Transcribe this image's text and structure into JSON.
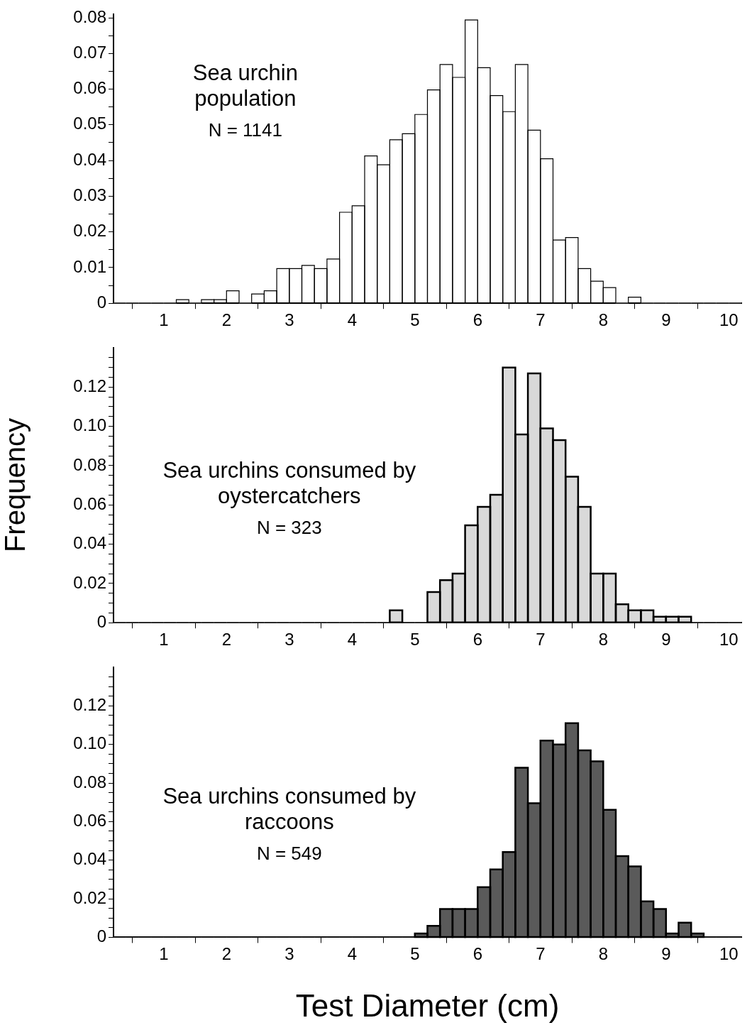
{
  "chart_data": [
    {
      "type": "histogram",
      "annotations": [
        "Sea urchin population",
        "N = 1141"
      ],
      "bins": [
        0.2,
        0.4,
        0.6,
        0.8,
        1.0,
        1.2,
        1.4,
        1.6,
        1.8,
        2.0,
        2.2,
        2.4,
        2.6,
        2.8,
        3.0,
        3.2,
        3.4,
        3.6,
        3.8,
        4.0,
        4.2,
        4.4,
        4.6,
        4.8,
        5.0,
        5.2,
        5.4,
        5.6,
        5.8,
        6.0,
        6.2,
        6.4,
        6.6,
        6.8,
        7.0,
        7.2,
        7.4,
        7.6,
        7.8,
        8.0,
        8.2,
        8.4,
        8.6,
        8.8,
        9.0,
        9.2,
        9.4,
        9.6,
        9.8,
        10.0,
        10.2
      ],
      "values": [
        0,
        0,
        0,
        0,
        0,
        0.001,
        0,
        0.001,
        0.001,
        0.0035,
        0,
        0.0026,
        0.0035,
        0.0097,
        0.0097,
        0.0106,
        0.0097,
        0.0124,
        0.0255,
        0.0273,
        0.0413,
        0.0388,
        0.0458,
        0.0475,
        0.0529,
        0.0598,
        0.0669,
        0.0633,
        0.0794,
        0.066,
        0.0582,
        0.0537,
        0.0669,
        0.0485,
        0.0405,
        0.0177,
        0.0184,
        0.0097,
        0.0062,
        0.0044,
        0,
        0.0017,
        0,
        0,
        0,
        0,
        0,
        0,
        0,
        0
      ],
      "color": "#ffffff",
      "xlim": [
        0.2,
        10.2
      ],
      "xticks": [
        1,
        2,
        3,
        4,
        5,
        6,
        7,
        8,
        9,
        10
      ],
      "ylim": [
        0,
        0.081
      ],
      "yticks": [
        0,
        {
          "value": 0.005,
          "label": null
        },
        0.01,
        {
          "value": 0.015,
          "label": null
        },
        0.02,
        {
          "value": 0.025,
          "label": null
        },
        0.03,
        {
          "value": 0.035,
          "label": null
        },
        0.04,
        {
          "value": 0.045,
          "label": null
        },
        0.05,
        {
          "value": 0.055,
          "label": null
        },
        0.06,
        {
          "value": 0.065,
          "label": null
        },
        0.07,
        {
          "value": 0.075,
          "label": null
        },
        0.08
      ]
    },
    {
      "type": "histogram",
      "ylabel": "Frequency",
      "annotations": [
        "Sea urchins consumed by oystercatchers",
        "N = 323"
      ],
      "bins": [
        0.2,
        0.4,
        0.6,
        0.8,
        1.0,
        1.2,
        1.4,
        1.6,
        1.8,
        2.0,
        2.2,
        2.4,
        2.6,
        2.8,
        3.0,
        3.2,
        3.4,
        3.6,
        3.8,
        4.0,
        4.2,
        4.4,
        4.6,
        4.8,
        5.0,
        5.2,
        5.4,
        5.6,
        5.8,
        6.0,
        6.2,
        6.4,
        6.6,
        6.8,
        7.0,
        7.2,
        7.4,
        7.6,
        7.8,
        8.0,
        8.2,
        8.4,
        8.6,
        8.8,
        9.0,
        9.2,
        9.4,
        9.6,
        9.8,
        10.0,
        10.2
      ],
      "values": [
        0,
        0,
        0,
        0,
        0,
        0,
        0,
        0,
        0,
        0,
        0,
        0,
        0,
        0,
        0,
        0,
        0,
        0,
        0,
        0,
        0,
        0,
        0.0063,
        0,
        0,
        0.0156,
        0.0217,
        0.025,
        0.0496,
        0.059,
        0.0652,
        0.13,
        0.0959,
        0.127,
        0.099,
        0.093,
        0.0744,
        0.059,
        0.025,
        0.025,
        0.0094,
        0.0063,
        0.0063,
        0.0031,
        0.0031,
        0.0031,
        0,
        0,
        0,
        0
      ],
      "color": "#d9d9d9",
      "xlim": [
        0.2,
        10.2
      ],
      "xticks": [
        1,
        2,
        3,
        4,
        5,
        6,
        7,
        8,
        9,
        10
      ],
      "ylim": [
        0,
        0.14
      ],
      "yticks": [
        0,
        {
          "value": 0.005,
          "label": null
        },
        {
          "value": 0.01,
          "label": null
        },
        {
          "value": 0.015,
          "label": null
        },
        0.02,
        {
          "value": 0.025,
          "label": null
        },
        {
          "value": 0.03,
          "label": null
        },
        {
          "value": 0.035,
          "label": null
        },
        0.04,
        {
          "value": 0.045,
          "label": null
        },
        {
          "value": 0.05,
          "label": null
        },
        {
          "value": 0.055,
          "label": null
        },
        0.06,
        {
          "value": 0.065,
          "label": null
        },
        {
          "value": 0.07,
          "label": null
        },
        {
          "value": 0.075,
          "label": null
        },
        0.08,
        {
          "value": 0.085,
          "label": null
        },
        {
          "value": 0.09,
          "label": null
        },
        {
          "value": 0.095,
          "label": null
        },
        {
          "value": 0.1,
          "label": "0.10"
        },
        {
          "value": 0.105,
          "label": null
        },
        {
          "value": 0.11,
          "label": null
        },
        {
          "value": 0.115,
          "label": null
        },
        0.12,
        {
          "value": 0.125,
          "label": null
        },
        {
          "value": 0.13,
          "label": null
        },
        {
          "value": 0.135,
          "label": null
        }
      ]
    },
    {
      "type": "histogram",
      "xlabel": "Test Diameter (cm)",
      "annotations": [
        "Sea urchins consumed by raccoons",
        "N = 549"
      ],
      "bins": [
        0.2,
        0.4,
        0.6,
        0.8,
        1.0,
        1.2,
        1.4,
        1.6,
        1.8,
        2.0,
        2.2,
        2.4,
        2.6,
        2.8,
        3.0,
        3.2,
        3.4,
        3.6,
        3.8,
        4.0,
        4.2,
        4.4,
        4.6,
        4.8,
        5.0,
        5.2,
        5.4,
        5.6,
        5.8,
        6.0,
        6.2,
        6.4,
        6.6,
        6.8,
        7.0,
        7.2,
        7.4,
        7.6,
        7.8,
        8.0,
        8.2,
        8.4,
        8.6,
        8.8,
        9.0,
        9.2,
        9.4,
        9.6,
        9.8,
        10.0,
        10.2
      ],
      "values": [
        0,
        0,
        0,
        0,
        0,
        0,
        0,
        0,
        0,
        0,
        0,
        0,
        0,
        0,
        0,
        0,
        0,
        0,
        0,
        0,
        0,
        0,
        0,
        0,
        0.002,
        0.0059,
        0.0147,
        0.0147,
        0.0147,
        0.026,
        0.0352,
        0.0442,
        0.0879,
        0.0695,
        0.102,
        0.1,
        0.111,
        0.0969,
        0.0912,
        0.0661,
        0.0421,
        0.0368,
        0.0186,
        0.0147,
        0.002,
        0.0076,
        0.002,
        0,
        0,
        0
      ],
      "color": "#5a5a5a",
      "xlim": [
        0.2,
        10.2
      ],
      "xticks": [
        1,
        2,
        3,
        4,
        5,
        6,
        7,
        8,
        9,
        10
      ],
      "ylim": [
        0,
        0.14
      ],
      "yticks": [
        0,
        {
          "value": 0.005,
          "label": null
        },
        {
          "value": 0.01,
          "label": null
        },
        {
          "value": 0.015,
          "label": null
        },
        0.02,
        {
          "value": 0.025,
          "label": null
        },
        {
          "value": 0.03,
          "label": null
        },
        {
          "value": 0.035,
          "label": null
        },
        0.04,
        {
          "value": 0.045,
          "label": null
        },
        {
          "value": 0.05,
          "label": null
        },
        {
          "value": 0.055,
          "label": null
        },
        0.06,
        {
          "value": 0.065,
          "label": null
        },
        {
          "value": 0.07,
          "label": null
        },
        {
          "value": 0.075,
          "label": null
        },
        0.08,
        {
          "value": 0.085,
          "label": null
        },
        {
          "value": 0.09,
          "label": null
        },
        {
          "value": 0.095,
          "label": null
        },
        {
          "value": 0.1,
          "label": "0.10"
        },
        {
          "value": 0.105,
          "label": null
        },
        {
          "value": 0.11,
          "label": null
        },
        {
          "value": 0.115,
          "label": null
        },
        0.12,
        {
          "value": 0.125,
          "label": null
        },
        {
          "value": 0.13,
          "label": null
        },
        {
          "value": 0.135,
          "label": null
        }
      ]
    }
  ]
}
